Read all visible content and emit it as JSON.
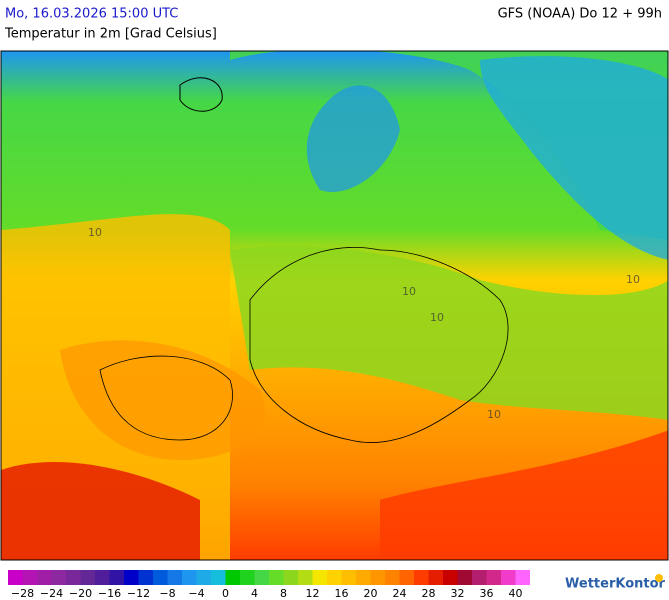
{
  "header": {
    "date": "Mo, 16.03.2026 15:00 UTC",
    "model": "GFS (NOAA) Do 12 + 99h",
    "subtitle": "Temperatur in 2m [Grad Celsius]"
  },
  "map": {
    "contour_labels": [
      "10",
      "10",
      "10",
      "10",
      "10"
    ]
  },
  "legend": {
    "colors": [
      "#c800c8",
      "#b414b4",
      "#a01ea5",
      "#8c28a0",
      "#78289b",
      "#642896",
      "#501e9b",
      "#3214a5",
      "#0000c8",
      "#0032d2",
      "#005adc",
      "#1478e6",
      "#1e96f0",
      "#1eaae6",
      "#14bedc",
      "#00c800",
      "#1ed21e",
      "#46d746",
      "#64dc28",
      "#8cd71e",
      "#b4dc14",
      "#f5e600",
      "#ffd200",
      "#ffbe00",
      "#ffaa00",
      "#ff9600",
      "#ff8200",
      "#ff6400",
      "#ff3c00",
      "#e61e00",
      "#c80000",
      "#a00a32",
      "#b41e6e",
      "#d2288c",
      "#f03cc8",
      "#ff64ff"
    ],
    "labels": [
      "−28",
      "−24",
      "−20",
      "−16",
      "−12",
      "−8",
      "−4",
      "0",
      "4",
      "8",
      "12",
      "16",
      "20",
      "24",
      "28",
      "32",
      "36",
      "40"
    ]
  },
  "logo": "WetterKontor"
}
